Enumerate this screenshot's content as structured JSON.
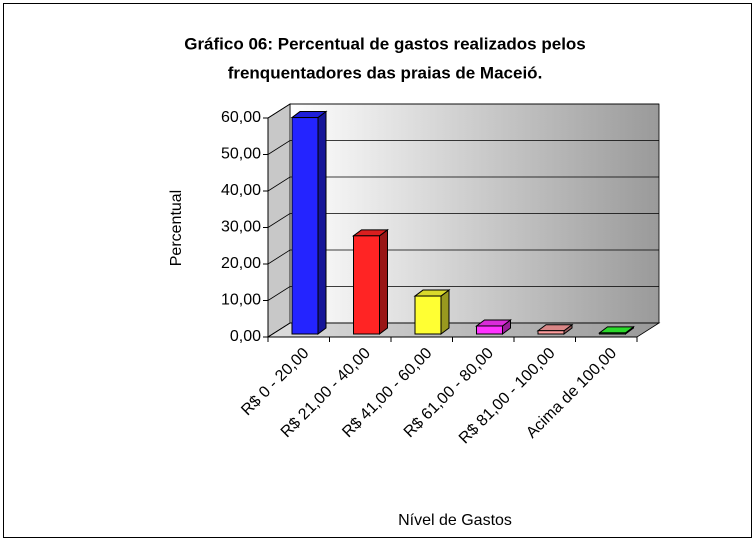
{
  "chart_data": {
    "type": "bar3d",
    "title": [
      "Gráfico 06: Percentual de gastos realizados pelos",
      "frenquentadores das praias de Maceió."
    ],
    "xlabel": "Nível de Gastos",
    "ylabel": "Percentual",
    "categories": [
      "R$ 0 - 20,00",
      "R$ 21,00 - 40,00",
      "R$ 41,00 - 60,00",
      "R$ 61,00 - 80,00",
      "R$ 81,00 - 100,00",
      "Acima de 100,00"
    ],
    "values": [
      59.3,
      26.9,
      10.4,
      2.2,
      0.9,
      0.3
    ],
    "colors": [
      "#2424ff",
      "#ff2424",
      "#ffff33",
      "#ff33ff",
      "#ff9e9e",
      "#33ff33"
    ],
    "ylim": [
      0,
      60
    ],
    "yticks": [
      {
        "value": 0,
        "label": "0,00"
      },
      {
        "value": 10,
        "label": "10,00"
      },
      {
        "value": 20,
        "label": "20,00"
      },
      {
        "value": 30,
        "label": "30,00"
      },
      {
        "value": 40,
        "label": "40,00"
      },
      {
        "value": 50,
        "label": "50,00"
      },
      {
        "value": 60,
        "label": "60,00"
      }
    ],
    "grid": true
  }
}
